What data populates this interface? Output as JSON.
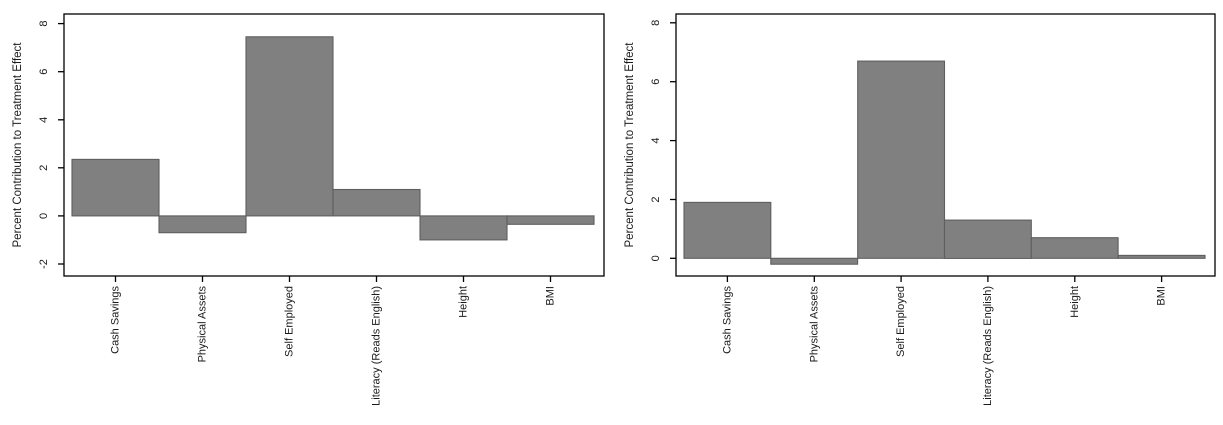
{
  "figure": {
    "background": "#ffffff",
    "bar_fill": "#808080",
    "bar_stroke": "#5e5e5e",
    "axis_color": "#000000",
    "text_color": "#1a1a1a"
  },
  "chart_data": [
    {
      "type": "bar",
      "id": "left",
      "title": "",
      "xlabel": "",
      "ylabel": "Percent Contribution to Treatment Effect",
      "categories": [
        "Cash Savings",
        "Physical Assets",
        "Self Employed",
        "Literacy (Reads English)",
        "Height",
        "BMI"
      ],
      "values": [
        2.35,
        -0.7,
        7.45,
        1.1,
        -1.0,
        -0.35
      ],
      "yticks": [
        -2,
        0,
        2,
        4,
        6,
        8
      ],
      "ylim": [
        -2.5,
        8.4
      ],
      "grid": false,
      "legend": "none",
      "x_tick_label_angle": -90,
      "y_tick_label_angle": -90
    },
    {
      "type": "bar",
      "id": "right",
      "title": "",
      "xlabel": "",
      "ylabel": "Percent Contribution to Treatment Effect",
      "categories": [
        "Cash Savings",
        "Physical Assets",
        "Self Employed",
        "Literacy (Reads English)",
        "Height",
        "BMI"
      ],
      "values": [
        1.9,
        -0.2,
        6.7,
        1.3,
        0.7,
        0.1
      ],
      "yticks": [
        0,
        2,
        4,
        6,
        8
      ],
      "ylim": [
        -0.6,
        8.3
      ],
      "grid": false,
      "legend": "none",
      "x_tick_label_angle": -90,
      "y_tick_label_angle": -90
    }
  ]
}
